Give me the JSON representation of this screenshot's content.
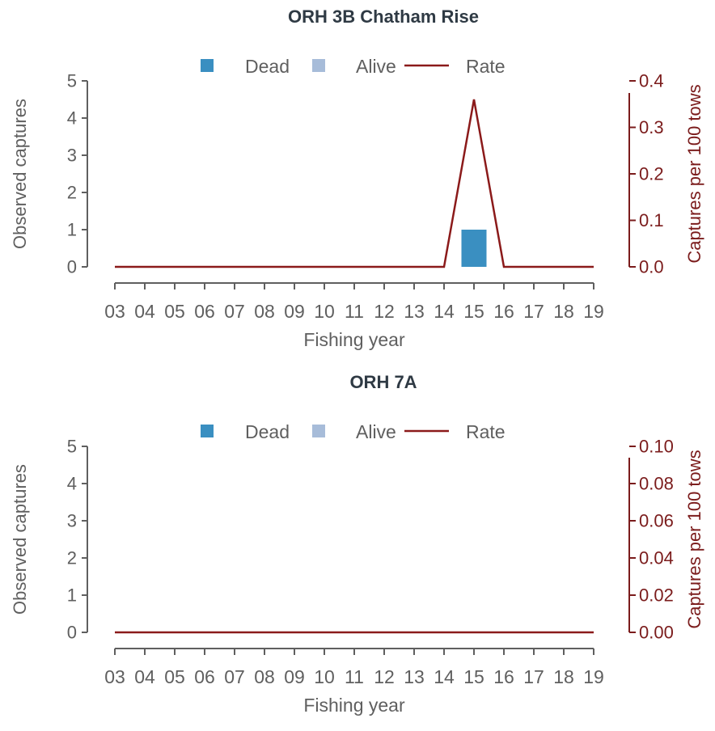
{
  "chart_data": [
    {
      "type": "bar",
      "title": "ORH 3B Chatham Rise",
      "categories": [
        "03",
        "04",
        "05",
        "06",
        "07",
        "08",
        "09",
        "10",
        "11",
        "12",
        "13",
        "14",
        "15",
        "16",
        "17",
        "18",
        "19"
      ],
      "series": [
        {
          "name": "Dead",
          "kind": "bar",
          "color": "#3a8fc1",
          "values": [
            0,
            0,
            0,
            0,
            0,
            0,
            0,
            0,
            0,
            0,
            0,
            0,
            1,
            0,
            0,
            0,
            0
          ]
        },
        {
          "name": "Alive",
          "kind": "bar",
          "color": "#a7bcd9",
          "values": [
            0,
            0,
            0,
            0,
            0,
            0,
            0,
            0,
            0,
            0,
            0,
            0,
            0,
            0,
            0,
            0,
            0
          ]
        },
        {
          "name": "Rate",
          "kind": "line",
          "axis": "right",
          "color": "#8b1a1a",
          "values": [
            0,
            0,
            0,
            0,
            0,
            0,
            0,
            0,
            0,
            0,
            0,
            0,
            0.36,
            0,
            0,
            0,
            0
          ]
        }
      ],
      "xlabel": "Fishing year",
      "ylabel": "Observed captures",
      "ylabel_right": "Captures per 100 tows",
      "ylim": [
        0,
        5
      ],
      "yticks": [
        0,
        1,
        2,
        3,
        4,
        5
      ],
      "ylim_right": [
        0,
        0.4
      ],
      "yticks_right": [
        "0.0",
        "0.1",
        "0.2",
        "0.3",
        "0.4"
      ],
      "legend_position": "top-center",
      "grid": false
    },
    {
      "type": "bar",
      "title": "ORH 7A",
      "categories": [
        "03",
        "04",
        "05",
        "06",
        "07",
        "08",
        "09",
        "10",
        "11",
        "12",
        "13",
        "14",
        "15",
        "16",
        "17",
        "18",
        "19"
      ],
      "series": [
        {
          "name": "Dead",
          "kind": "bar",
          "color": "#3a8fc1",
          "values": [
            0,
            0,
            0,
            0,
            0,
            0,
            0,
            0,
            0,
            0,
            0,
            0,
            0,
            0,
            0,
            0,
            0
          ]
        },
        {
          "name": "Alive",
          "kind": "bar",
          "color": "#a7bcd9",
          "values": [
            0,
            0,
            0,
            0,
            0,
            0,
            0,
            0,
            0,
            0,
            0,
            0,
            0,
            0,
            0,
            0,
            0
          ]
        },
        {
          "name": "Rate",
          "kind": "line",
          "axis": "right",
          "color": "#8b1a1a",
          "values": [
            0,
            0,
            0,
            0,
            0,
            0,
            0,
            0,
            0,
            0,
            0,
            0,
            0,
            0,
            0,
            0,
            0
          ]
        }
      ],
      "xlabel": "Fishing year",
      "ylabel": "Observed captures",
      "ylabel_right": "Captures per 100 tows",
      "ylim": [
        0,
        5
      ],
      "yticks": [
        0,
        1,
        2,
        3,
        4,
        5
      ],
      "ylim_right": [
        0,
        0.1
      ],
      "yticks_right": [
        "0.00",
        "0.02",
        "0.04",
        "0.06",
        "0.08",
        "0.10"
      ],
      "legend_position": "top-center",
      "grid": false
    }
  ]
}
